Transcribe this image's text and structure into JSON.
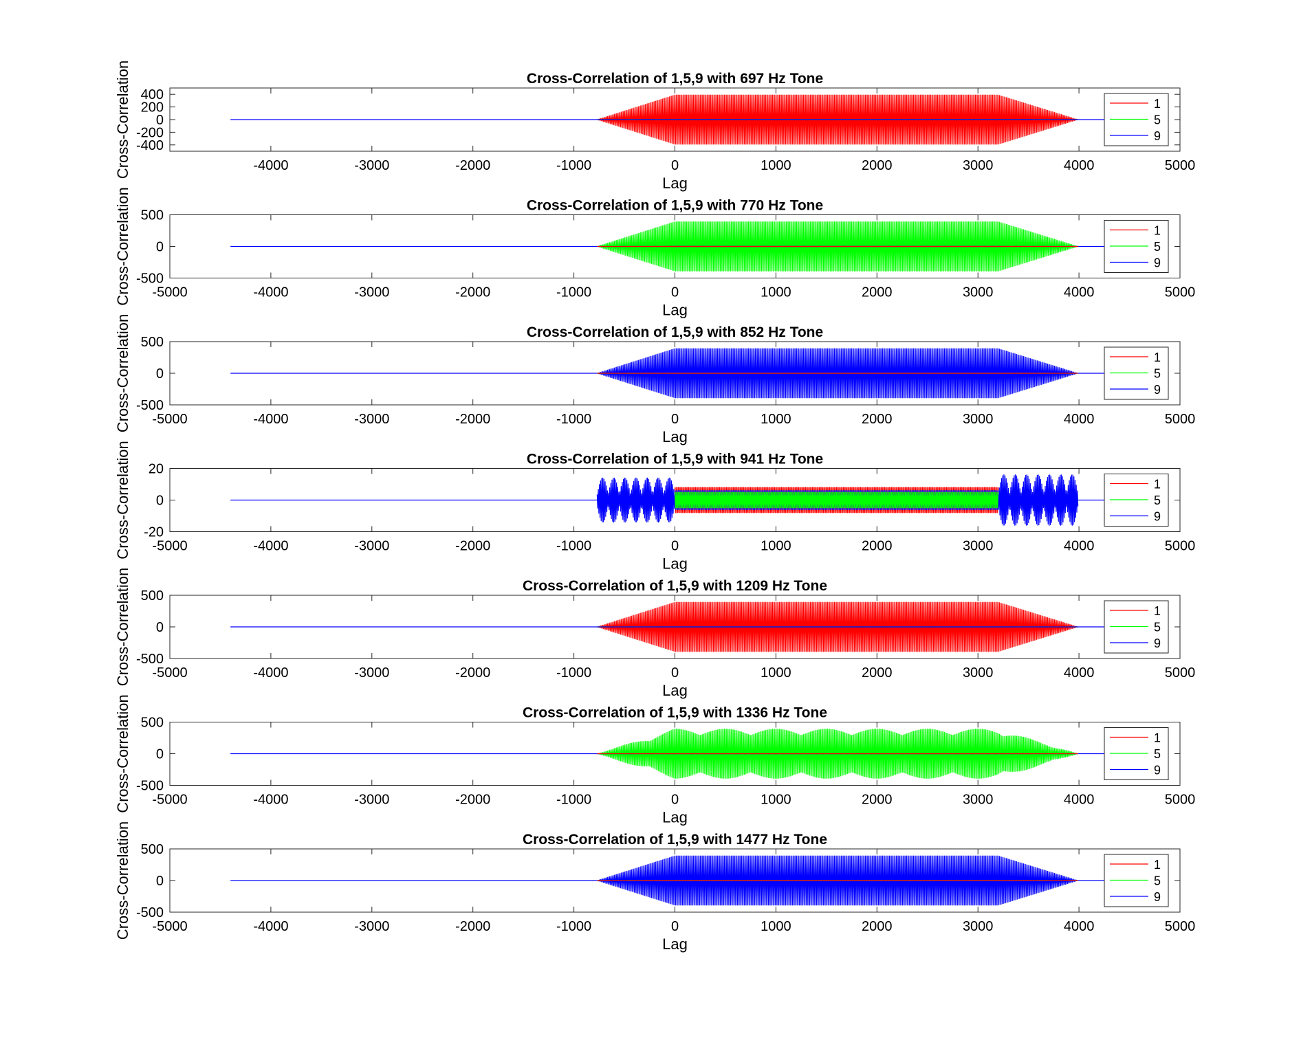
{
  "figure": {
    "background": "#ffffff",
    "series_colors": {
      "1": "#ff0000",
      "5": "#00ff00",
      "9": "#0000ff"
    }
  },
  "chart_data": [
    {
      "type": "line",
      "title": "Cross-Correlation of 1,5,9 with 697 Hz Tone",
      "xlabel": "Lag",
      "ylabel": "Cross-Correlation",
      "xlim": [
        -5000,
        5000
      ],
      "ylim": [
        -500,
        500
      ],
      "xticks": [
        -4000,
        -3000,
        -2000,
        -1000,
        0,
        1000,
        2000,
        3000,
        4000,
        5000
      ],
      "yticks": [
        -400,
        -200,
        0,
        200,
        400
      ],
      "legend": [
        "1",
        "5",
        "9"
      ],
      "legend_position": "right",
      "grid": false,
      "lag_range": [
        -4400,
        4400
      ],
      "series": [
        {
          "name": "1",
          "color": "#ff0000",
          "shape": "trapezoid",
          "start": -770,
          "ramp_end": 0,
          "plateau_end": 3200,
          "end": 3990,
          "amplitude": 390
        },
        {
          "name": "5",
          "color": "#00ff00",
          "shape": "trapezoid",
          "start": -770,
          "ramp_end": 0,
          "plateau_end": 3200,
          "end": 3990,
          "amplitude": 3
        },
        {
          "name": "9",
          "color": "#0000ff",
          "shape": "trapezoid",
          "start": -770,
          "ramp_end": 0,
          "plateau_end": 3200,
          "end": 3990,
          "amplitude": 2
        }
      ]
    },
    {
      "type": "line",
      "title": "Cross-Correlation of 1,5,9 with 770 Hz Tone",
      "xlabel": "Lag",
      "ylabel": "Cross-Correlation",
      "xlim": [
        -5000,
        5000
      ],
      "ylim": [
        -500,
        500
      ],
      "xticks": [
        -5000,
        -4000,
        -3000,
        -2000,
        -1000,
        0,
        1000,
        2000,
        3000,
        4000,
        5000
      ],
      "yticks": [
        -500,
        0,
        500
      ],
      "legend": [
        "1",
        "5",
        "9"
      ],
      "legend_position": "right",
      "grid": false,
      "lag_range": [
        -4400,
        4400
      ],
      "series": [
        {
          "name": "1",
          "color": "#ff0000",
          "shape": "trapezoid",
          "start": -770,
          "ramp_end": 0,
          "plateau_end": 3200,
          "end": 3990,
          "amplitude": 3
        },
        {
          "name": "5",
          "color": "#00ff00",
          "shape": "trapezoid",
          "start": -770,
          "ramp_end": 0,
          "plateau_end": 3200,
          "end": 3990,
          "amplitude": 390
        },
        {
          "name": "9",
          "color": "#0000ff",
          "shape": "trapezoid",
          "start": -770,
          "ramp_end": 0,
          "plateau_end": 3200,
          "end": 3990,
          "amplitude": 4
        }
      ]
    },
    {
      "type": "line",
      "title": "Cross-Correlation of 1,5,9 with 852 Hz Tone",
      "xlabel": "Lag",
      "ylabel": "Cross-Correlation",
      "xlim": [
        -5000,
        5000
      ],
      "ylim": [
        -500,
        500
      ],
      "xticks": [
        -5000,
        -4000,
        -3000,
        -2000,
        -1000,
        0,
        1000,
        2000,
        3000,
        4000,
        5000
      ],
      "yticks": [
        -500,
        0,
        500
      ],
      "legend": [
        "1",
        "5",
        "9"
      ],
      "legend_position": "right",
      "grid": false,
      "lag_range": [
        -4400,
        4400
      ],
      "series": [
        {
          "name": "1",
          "color": "#ff0000",
          "shape": "trapezoid",
          "start": -770,
          "ramp_end": 0,
          "plateau_end": 3200,
          "end": 3990,
          "amplitude": 2
        },
        {
          "name": "5",
          "color": "#00ff00",
          "shape": "trapezoid",
          "start": -770,
          "ramp_end": 0,
          "plateau_end": 3200,
          "end": 3990,
          "amplitude": 3
        },
        {
          "name": "9",
          "color": "#0000ff",
          "shape": "trapezoid",
          "start": -770,
          "ramp_end": 0,
          "plateau_end": 3200,
          "end": 3990,
          "amplitude": 390
        }
      ]
    },
    {
      "type": "line",
      "title": "Cross-Correlation of 1,5,9 with 941 Hz Tone",
      "xlabel": "Lag",
      "ylabel": "Cross-Correlation",
      "xlim": [
        -5000,
        5000
      ],
      "ylim": [
        -20,
        20
      ],
      "xticks": [
        -5000,
        -4000,
        -3000,
        -2000,
        -1000,
        0,
        1000,
        2000,
        3000,
        4000,
        5000
      ],
      "yticks": [
        -20,
        0,
        20
      ],
      "legend": [
        "1",
        "5",
        "9"
      ],
      "legend_position": "right",
      "grid": false,
      "lag_range": [
        -4400,
        4400
      ],
      "series": [
        {
          "name": "1",
          "color": "#ff0000",
          "shape": "band",
          "start": 0,
          "end": 3200,
          "amplitude": 8
        },
        {
          "name": "5",
          "color": "#00ff00",
          "shape": "band",
          "start": 0,
          "end": 3200,
          "amplitude": 5
        },
        {
          "name": "9",
          "color": "#0000ff",
          "shape": "band",
          "start": 0,
          "end": 3200,
          "amplitude": 6
        },
        {
          "name": "9",
          "color": "#0000ff",
          "shape": "bursts",
          "start": -770,
          "end": 0,
          "amplitude": 14,
          "count": 7
        },
        {
          "name": "9",
          "color": "#0000ff",
          "shape": "bursts",
          "start": 3200,
          "end": 3990,
          "amplitude": 16,
          "count": 7
        }
      ]
    },
    {
      "type": "line",
      "title": "Cross-Correlation of 1,5,9 with 1209 Hz Tone",
      "xlabel": "Lag",
      "ylabel": "Cross-Correlation",
      "xlim": [
        -5000,
        5000
      ],
      "ylim": [
        -500,
        500
      ],
      "xticks": [
        -5000,
        -4000,
        -3000,
        -2000,
        -1000,
        0,
        1000,
        2000,
        3000,
        4000,
        5000
      ],
      "yticks": [
        -500,
        0,
        500
      ],
      "legend": [
        "1",
        "5",
        "9"
      ],
      "legend_position": "right",
      "grid": false,
      "lag_range": [
        -4400,
        4400
      ],
      "series": [
        {
          "name": "1",
          "color": "#ff0000",
          "shape": "trapezoid",
          "start": -770,
          "ramp_end": 0,
          "plateau_end": 3200,
          "end": 3990,
          "amplitude": 390
        },
        {
          "name": "5",
          "color": "#00ff00",
          "shape": "trapezoid",
          "start": -770,
          "ramp_end": 0,
          "plateau_end": 3200,
          "end": 3990,
          "amplitude": 3
        },
        {
          "name": "9",
          "color": "#0000ff",
          "shape": "trapezoid",
          "start": -770,
          "ramp_end": 0,
          "plateau_end": 3200,
          "end": 3990,
          "amplitude": 3
        }
      ]
    },
    {
      "type": "line",
      "title": "Cross-Correlation of 1,5,9 with 1336 Hz Tone",
      "xlabel": "Lag",
      "ylabel": "Cross-Correlation",
      "xlim": [
        -5000,
        5000
      ],
      "ylim": [
        -500,
        500
      ],
      "xticks": [
        -5000,
        -4000,
        -3000,
        -2000,
        -1000,
        0,
        1000,
        2000,
        3000,
        4000,
        5000
      ],
      "yticks": [
        -500,
        0,
        500
      ],
      "legend": [
        "1",
        "5",
        "9"
      ],
      "legend_position": "right",
      "grid": false,
      "lag_range": [
        -4400,
        4400
      ],
      "series": [
        {
          "name": "1",
          "color": "#ff0000",
          "shape": "trapezoid",
          "start": -770,
          "ramp_end": 0,
          "plateau_end": 3200,
          "end": 3990,
          "amplitude": 2
        },
        {
          "name": "5",
          "color": "#00ff00",
          "shape": "scalloped",
          "start": -770,
          "ramp_end": 0,
          "plateau_end": 3200,
          "end": 3990,
          "amplitude": 390,
          "dip": 290,
          "period": 500
        },
        {
          "name": "9",
          "color": "#0000ff",
          "shape": "trapezoid",
          "start": -770,
          "ramp_end": 0,
          "plateau_end": 3200,
          "end": 3990,
          "amplitude": 3
        }
      ]
    },
    {
      "type": "line",
      "title": "Cross-Correlation of 1,5,9 with 1477 Hz Tone",
      "xlabel": "Lag",
      "ylabel": "Cross-Correlation",
      "xlim": [
        -5000,
        5000
      ],
      "ylim": [
        -500,
        500
      ],
      "xticks": [
        -5000,
        -4000,
        -3000,
        -2000,
        -1000,
        0,
        1000,
        2000,
        3000,
        4000,
        5000
      ],
      "yticks": [
        -500,
        0,
        500
      ],
      "legend": [
        "1",
        "5",
        "9"
      ],
      "legend_position": "right",
      "grid": false,
      "lag_range": [
        -4400,
        4400
      ],
      "series": [
        {
          "name": "1",
          "color": "#ff0000",
          "shape": "trapezoid",
          "start": -770,
          "ramp_end": 0,
          "plateau_end": 3200,
          "end": 3990,
          "amplitude": 2
        },
        {
          "name": "5",
          "color": "#00ff00",
          "shape": "trapezoid",
          "start": -770,
          "ramp_end": 0,
          "plateau_end": 3200,
          "end": 3990,
          "amplitude": 3
        },
        {
          "name": "9",
          "color": "#0000ff",
          "shape": "trapezoid",
          "start": -770,
          "ramp_end": 0,
          "plateau_end": 3200,
          "end": 3990,
          "amplitude": 390
        }
      ]
    }
  ]
}
